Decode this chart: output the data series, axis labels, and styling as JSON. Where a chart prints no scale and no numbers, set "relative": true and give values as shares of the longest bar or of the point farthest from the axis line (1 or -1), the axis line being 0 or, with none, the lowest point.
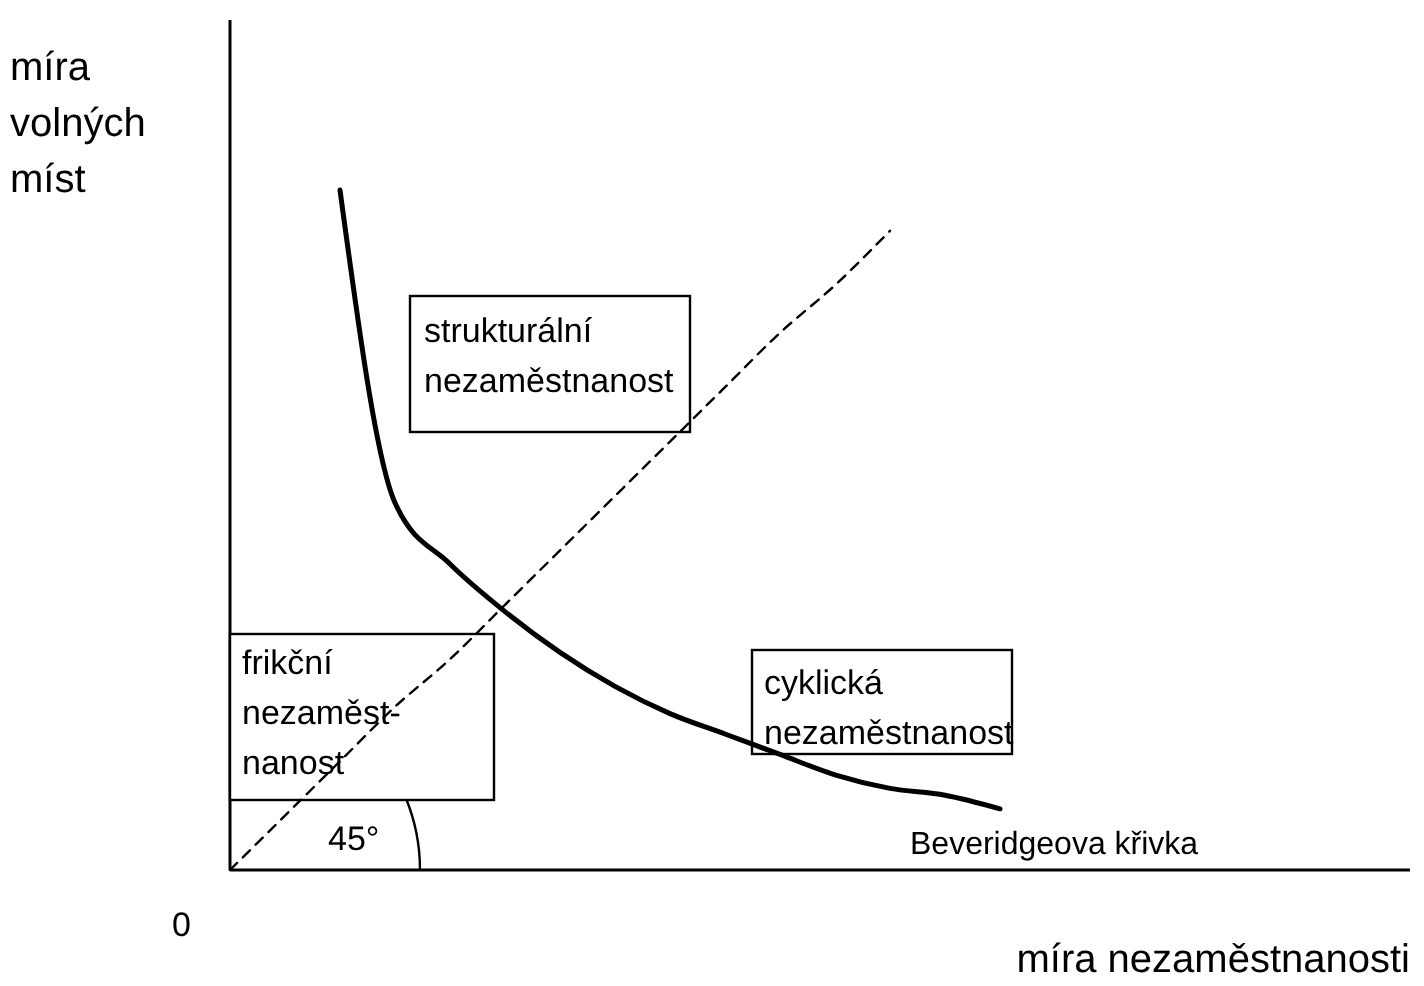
{
  "chart_data": {
    "type": "line",
    "relative": true,
    "xlabel": "míra nezaměstnanosti",
    "ylabel": "míra volných míst",
    "categories": [
      null,
      null,
      null,
      null,
      null,
      null,
      null,
      null,
      null,
      null,
      null,
      null,
      null,
      null,
      null,
      null,
      null,
      null,
      null,
      null,
      null,
      null
    ],
    "series": [
      {
        "name": "Beveridgeova křivka",
        "color": "#000000",
        "line_style": "solid",
        "values": [
          null,
          null,
          1,
          0.54,
          0.45,
          0.38,
          0.32,
          0.27,
          0.23,
          0.2,
          0.17,
          0.14,
          0.12,
          0.11,
          0.09,
          null,
          null,
          null,
          null,
          null,
          null,
          null
        ]
      },
      {
        "color": "#000000",
        "line_style": "dashed",
        "values": [
          0,
          0.08,
          0.16,
          0.24,
          0.31,
          0.39,
          0.47,
          0.55,
          0.63,
          0.71,
          0.79,
          0.86,
          0.94,
          null,
          null,
          null,
          null,
          null,
          null,
          null,
          null,
          null
        ]
      }
    ],
    "annotations": [
      "strukturální\nnezaměstnanost",
      "frikční\nnezaměst-\nnanost",
      "cyklická\nnezaměstnanost",
      "45°",
      "0"
    ],
    "title": null
  }
}
